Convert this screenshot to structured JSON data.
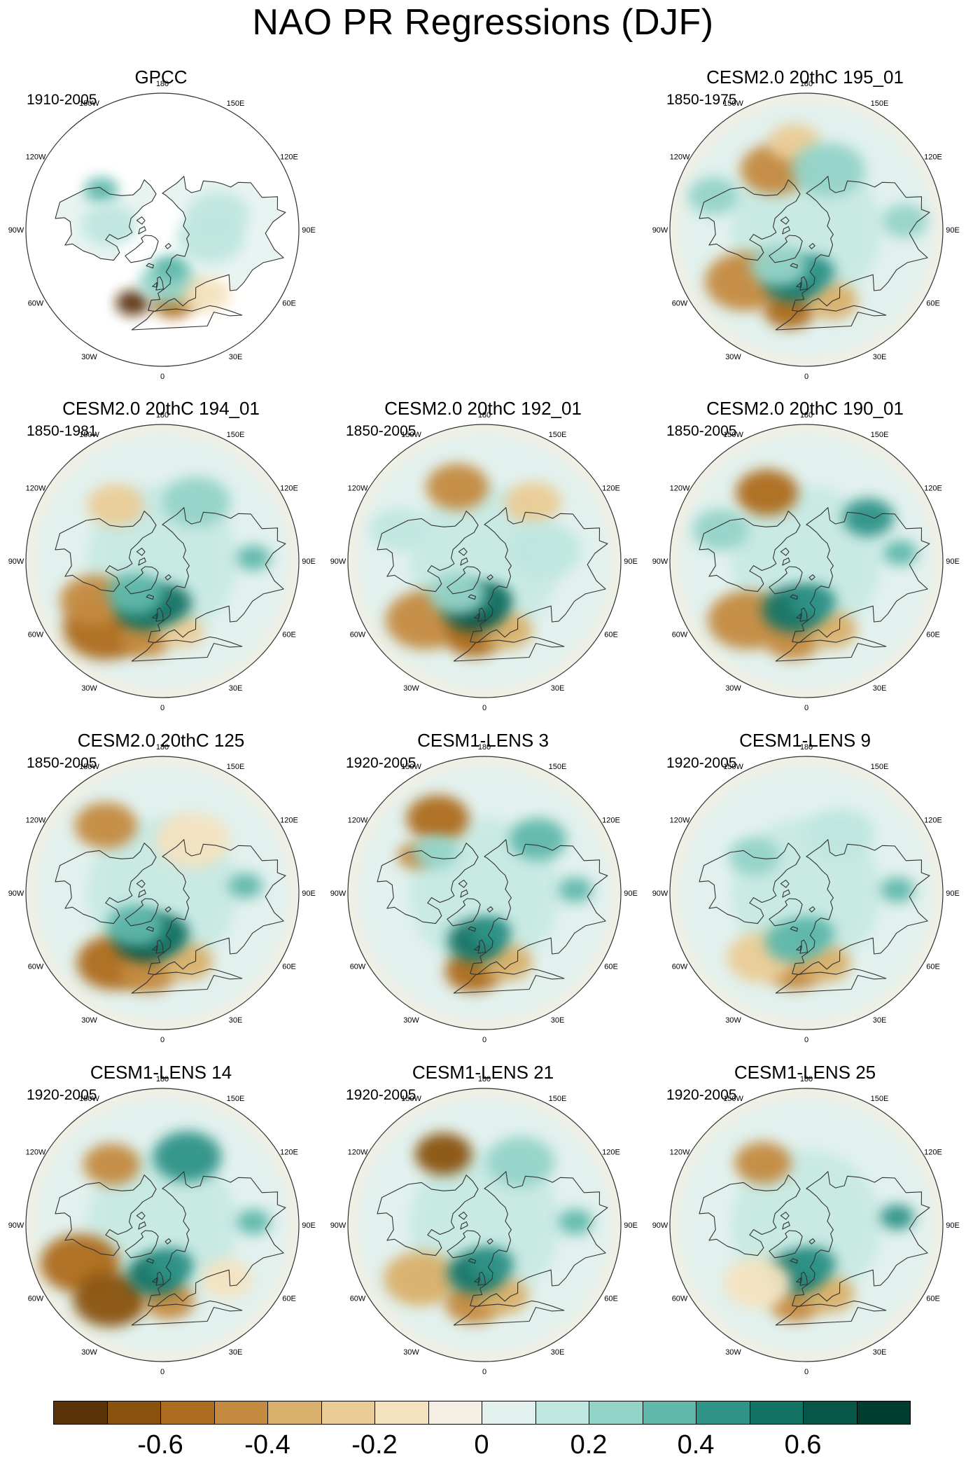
{
  "title": "NAO PR Regressions (DJF)",
  "lon_labels": [
    "180",
    "150E",
    "120E",
    "90E",
    "60E",
    "30E",
    "0",
    "30W",
    "60W",
    "90W",
    "120W",
    "150W"
  ],
  "colors": {
    "missing": "#ffffff",
    "coast": "#333333",
    "outline": "#333333",
    "scale": [
      "#5a3309",
      "#8a520f",
      "#ad6c1f",
      "#c48a3f",
      "#d9b06b",
      "#eacc96",
      "#f4e2bf",
      "#f4efe2",
      "#e2f1ee",
      "#bfe6df",
      "#94d3c8",
      "#5fb8aa",
      "#2f9388",
      "#137466",
      "#075749",
      "#003d31"
    ]
  },
  "panels": [
    {
      "title": "GPCC",
      "years": "1910-2005",
      "observed": true,
      "features": [
        {
          "lon": -22,
          "lat": 38,
          "value": -0.72,
          "size": 0.6
        },
        {
          "lon": 8,
          "lat": 41,
          "value": -0.52,
          "size": 0.7
        },
        {
          "lon": 22,
          "lat": 43,
          "value": -0.38,
          "size": 0.6
        },
        {
          "lon": 5,
          "lat": 55,
          "value": 0.2,
          "size": 1.0
        },
        {
          "lon": 12,
          "lat": 64,
          "value": 0.35,
          "size": 0.6
        },
        {
          "lon": -123,
          "lat": 42,
          "value": 0.32,
          "size": 0.6
        },
        {
          "lon": -95,
          "lat": 55,
          "value": 0.12,
          "size": 1.0
        },
        {
          "lon": 80,
          "lat": 58,
          "value": 0.14,
          "size": 1.2
        },
        {
          "lon": 105,
          "lat": 52,
          "value": 0.1,
          "size": 1.1
        },
        {
          "lon": 35,
          "lat": 38,
          "value": -0.18,
          "size": 0.8
        }
      ]
    },
    {
      "title": "CESM2.0 20thC 195_01",
      "years": "1850-1975",
      "observed": false,
      "features": [
        {
          "lon": -152,
          "lat": 45,
          "value": -0.42,
          "size": 1.2
        },
        {
          "lon": -172,
          "lat": 32,
          "value": -0.3,
          "size": 0.9
        },
        {
          "lon": -50,
          "lat": 37,
          "value": -0.48,
          "size": 1.4
        },
        {
          "lon": -12,
          "lat": 36,
          "value": -0.55,
          "size": 0.9
        },
        {
          "lon": 20,
          "lat": 40,
          "value": -0.4,
          "size": 0.9
        },
        {
          "lon": -15,
          "lat": 55,
          "value": 0.55,
          "size": 1.0
        },
        {
          "lon": 8,
          "lat": 62,
          "value": 0.48,
          "size": 0.8
        },
        {
          "lon": -38,
          "lat": 60,
          "value": 0.28,
          "size": 1.0
        },
        {
          "lon": 160,
          "lat": 48,
          "value": 0.22,
          "size": 1.3
        },
        {
          "lon": 95,
          "lat": 25,
          "value": 0.2,
          "size": 0.8
        },
        {
          "lon": -110,
          "lat": 25,
          "value": 0.22,
          "size": 0.9
        }
      ]
    },
    {
      "title": "CESM2.0 20thC 194_01",
      "years": "1850-1981",
      "observed": false,
      "features": [
        {
          "lon": -40,
          "lat": 32,
          "value": -0.6,
          "size": 1.5
        },
        {
          "lon": -60,
          "lat": 38,
          "value": -0.45,
          "size": 1.2
        },
        {
          "lon": -12,
          "lat": 38,
          "value": -0.45,
          "size": 0.9
        },
        {
          "lon": 15,
          "lat": 42,
          "value": -0.3,
          "size": 0.8
        },
        {
          "lon": -140,
          "lat": 42,
          "value": -0.25,
          "size": 1.0
        },
        {
          "lon": -20,
          "lat": 56,
          "value": 0.58,
          "size": 1.0
        },
        {
          "lon": 5,
          "lat": 62,
          "value": 0.52,
          "size": 0.9
        },
        {
          "lon": -40,
          "lat": 62,
          "value": 0.3,
          "size": 1.0
        },
        {
          "lon": 150,
          "lat": 45,
          "value": 0.2,
          "size": 1.2
        },
        {
          "lon": 92,
          "lat": 30,
          "value": 0.3,
          "size": 0.6
        }
      ]
    },
    {
      "title": "CESM2.0 20thC 192_01",
      "years": "1850-2005",
      "observed": false,
      "features": [
        {
          "lon": -160,
          "lat": 38,
          "value": -0.5,
          "size": 1.1
        },
        {
          "lon": 140,
          "lat": 40,
          "value": -0.3,
          "size": 1.0
        },
        {
          "lon": -45,
          "lat": 35,
          "value": -0.45,
          "size": 1.4
        },
        {
          "lon": -8,
          "lat": 40,
          "value": -0.52,
          "size": 1.0
        },
        {
          "lon": 18,
          "lat": 42,
          "value": -0.35,
          "size": 0.9
        },
        {
          "lon": -12,
          "lat": 58,
          "value": 0.62,
          "size": 1.1
        },
        {
          "lon": 8,
          "lat": 64,
          "value": 0.5,
          "size": 0.8
        },
        {
          "lon": -40,
          "lat": 62,
          "value": 0.25,
          "size": 1.0
        },
        {
          "lon": 100,
          "lat": 50,
          "value": 0.15,
          "size": 1.3
        },
        {
          "lon": -110,
          "lat": 30,
          "value": 0.18,
          "size": 1.0
        }
      ]
    },
    {
      "title": "CESM2.0 20thC 190_01",
      "years": "1850-2005",
      "observed": false,
      "features": [
        {
          "lon": -150,
          "lat": 38,
          "value": -0.52,
          "size": 1.1
        },
        {
          "lon": -45,
          "lat": 35,
          "value": -0.5,
          "size": 1.4
        },
        {
          "lon": -10,
          "lat": 38,
          "value": -0.5,
          "size": 1.0
        },
        {
          "lon": 20,
          "lat": 42,
          "value": -0.35,
          "size": 0.9
        },
        {
          "lon": -15,
          "lat": 57,
          "value": 0.6,
          "size": 1.1
        },
        {
          "lon": 10,
          "lat": 63,
          "value": 0.45,
          "size": 0.8
        },
        {
          "lon": 125,
          "lat": 40,
          "value": 0.42,
          "size": 0.9
        },
        {
          "lon": 95,
          "lat": 28,
          "value": 0.35,
          "size": 0.6
        },
        {
          "lon": -110,
          "lat": 30,
          "value": 0.2,
          "size": 1.0
        }
      ]
    },
    {
      "title": "CESM2.0 20thC 125",
      "years": "1850-2005",
      "observed": false,
      "features": [
        {
          "lon": -140,
          "lat": 32,
          "value": -0.5,
          "size": 1.1
        },
        {
          "lon": -35,
          "lat": 34,
          "value": -0.55,
          "size": 1.3
        },
        {
          "lon": -10,
          "lat": 37,
          "value": -0.5,
          "size": 1.0
        },
        {
          "lon": 20,
          "lat": 42,
          "value": -0.4,
          "size": 0.9
        },
        {
          "lon": -20,
          "lat": 58,
          "value": 0.62,
          "size": 1.1
        },
        {
          "lon": 2,
          "lat": 63,
          "value": 0.5,
          "size": 0.9
        },
        {
          "lon": -40,
          "lat": 62,
          "value": 0.3,
          "size": 1.0
        },
        {
          "lon": 95,
          "lat": 35,
          "value": 0.3,
          "size": 0.6
        },
        {
          "lon": 150,
          "lat": 50,
          "value": -0.12,
          "size": 1.3
        }
      ]
    },
    {
      "title": "CESM1-LENS 3",
      "years": "1920-2005",
      "observed": false,
      "features": [
        {
          "lon": -148,
          "lat": 32,
          "value": -0.6,
          "size": 1.1
        },
        {
          "lon": -118,
          "lat": 38,
          "value": -0.5,
          "size": 0.6
        },
        {
          "lon": -130,
          "lat": 48,
          "value": 0.28,
          "size": 0.8
        },
        {
          "lon": -8,
          "lat": 38,
          "value": -0.52,
          "size": 1.0
        },
        {
          "lon": 18,
          "lat": 42,
          "value": -0.38,
          "size": 0.9
        },
        {
          "lon": -10,
          "lat": 58,
          "value": 0.58,
          "size": 1.0
        },
        {
          "lon": 10,
          "lat": 64,
          "value": 0.42,
          "size": 0.7
        },
        {
          "lon": 135,
          "lat": 40,
          "value": 0.3,
          "size": 1.0
        },
        {
          "lon": 92,
          "lat": 30,
          "value": 0.35,
          "size": 0.6
        }
      ]
    },
    {
      "title": "CESM1-LENS 9",
      "years": "1920-2005",
      "observed": false,
      "features": [
        {
          "lon": -8,
          "lat": 38,
          "value": -0.5,
          "size": 0.9
        },
        {
          "lon": 15,
          "lat": 42,
          "value": -0.35,
          "size": 0.9
        },
        {
          "lon": -35,
          "lat": 38,
          "value": -0.25,
          "size": 1.2
        },
        {
          "lon": -15,
          "lat": 57,
          "value": 0.38,
          "size": 1.0
        },
        {
          "lon": 8,
          "lat": 63,
          "value": 0.3,
          "size": 0.8
        },
        {
          "lon": -125,
          "lat": 48,
          "value": 0.25,
          "size": 0.9
        },
        {
          "lon": 92,
          "lat": 30,
          "value": 0.35,
          "size": 0.6
        },
        {
          "lon": 150,
          "lat": 45,
          "value": 0.15,
          "size": 1.2
        }
      ]
    },
    {
      "title": "CESM1-LENS 14",
      "years": "1920-2005",
      "observed": false,
      "features": [
        {
          "lon": -140,
          "lat": 38,
          "value": -0.45,
          "size": 1.0
        },
        {
          "lon": -65,
          "lat": 30,
          "value": -0.52,
          "size": 1.4
        },
        {
          "lon": -35,
          "lat": 30,
          "value": -0.62,
          "size": 1.3
        },
        {
          "lon": 5,
          "lat": 40,
          "value": -0.45,
          "size": 0.9
        },
        {
          "lon": -8,
          "lat": 57,
          "value": 0.58,
          "size": 1.0
        },
        {
          "lon": 12,
          "lat": 63,
          "value": 0.42,
          "size": 0.8
        },
        {
          "lon": 160,
          "lat": 42,
          "value": 0.42,
          "size": 1.2
        },
        {
          "lon": 92,
          "lat": 30,
          "value": 0.35,
          "size": 0.6
        },
        {
          "lon": 50,
          "lat": 35,
          "value": -0.2,
          "size": 0.9
        }
      ]
    },
    {
      "title": "CESM1-LENS 21",
      "years": "1920-2005",
      "observed": false,
      "features": [
        {
          "lon": -150,
          "lat": 36,
          "value": -0.62,
          "size": 1.0
        },
        {
          "lon": -50,
          "lat": 35,
          "value": -0.35,
          "size": 1.3
        },
        {
          "lon": -8,
          "lat": 38,
          "value": -0.5,
          "size": 1.0
        },
        {
          "lon": 15,
          "lat": 42,
          "value": -0.38,
          "size": 0.9
        },
        {
          "lon": -10,
          "lat": 58,
          "value": 0.55,
          "size": 1.0
        },
        {
          "lon": 10,
          "lat": 64,
          "value": 0.4,
          "size": 0.8
        },
        {
          "lon": 150,
          "lat": 42,
          "value": 0.28,
          "size": 1.2
        },
        {
          "lon": 92,
          "lat": 30,
          "value": 0.35,
          "size": 0.6
        }
      ]
    },
    {
      "title": "CESM1-LENS 25",
      "years": "1920-2005",
      "observed": false,
      "features": [
        {
          "lon": -145,
          "lat": 40,
          "value": -0.42,
          "size": 1.0
        },
        {
          "lon": -8,
          "lat": 38,
          "value": -0.5,
          "size": 0.9
        },
        {
          "lon": 18,
          "lat": 42,
          "value": -0.32,
          "size": 0.9
        },
        {
          "lon": -12,
          "lat": 58,
          "value": 0.6,
          "size": 1.0
        },
        {
          "lon": 10,
          "lat": 64,
          "value": 0.42,
          "size": 0.8
        },
        {
          "lon": 95,
          "lat": 30,
          "value": 0.45,
          "size": 0.6
        },
        {
          "lon": -40,
          "lat": 40,
          "value": -0.2,
          "size": 1.2
        }
      ]
    }
  ],
  "colorbar": {
    "min": -0.8,
    "max": 0.8,
    "labels": [
      "-0.6",
      "-0.4",
      "-0.2",
      "0",
      "0.2",
      "0.4",
      "0.6"
    ],
    "label_values": [
      -0.6,
      -0.4,
      -0.2,
      0,
      0.2,
      0.4,
      0.6
    ]
  }
}
